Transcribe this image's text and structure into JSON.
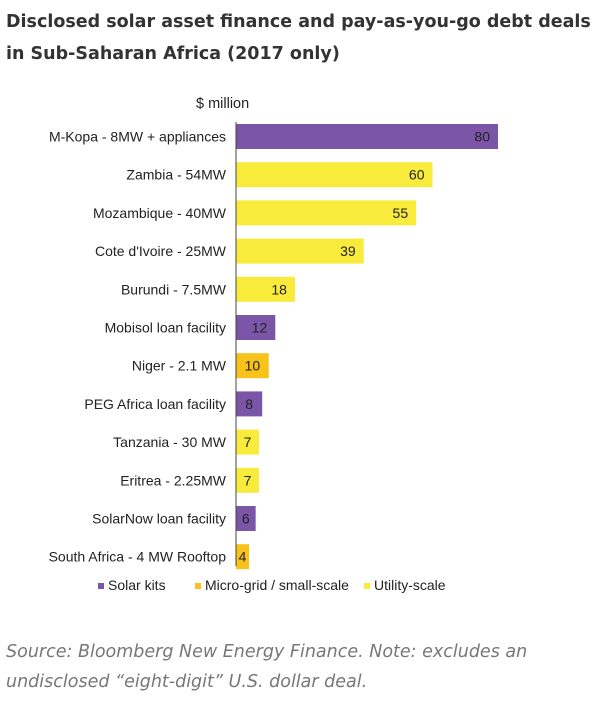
{
  "title": "Disclosed solar asset finance and pay-as-you-go debt deals in Sub-Saharan Africa (2017 only)",
  "caption": "Source: Bloomberg New Energy Finance. Note: excludes an undisclosed “eight-digit” U.S. dollar deal.",
  "colors": {
    "solar_kits": "#7b55a8",
    "micro_grid": "#f7c21a",
    "utility_scale": "#f9eb3c"
  },
  "chart_data": {
    "type": "bar",
    "orientation": "horizontal",
    "unit_label": "$ million",
    "categories": [
      "M-Kopa - 8MW + appliances",
      "Zambia -  54MW",
      "Mozambique - 40MW",
      "Cote d'Ivoire - 25MW",
      "Burundi - 7.5MW",
      "Mobisol loan facility",
      "Niger - 2.1 MW",
      "PEG Africa loan facility",
      "Tanzania - 30 MW",
      "Eritrea - 2.25MW",
      "SolarNow loan facility",
      "South Africa - 4 MW Rooftop"
    ],
    "values": [
      80,
      60,
      55,
      39,
      18,
      12,
      10,
      8,
      7,
      7,
      6,
      4
    ],
    "segments": [
      "solar_kits",
      "utility_scale",
      "utility_scale",
      "utility_scale",
      "utility_scale",
      "solar_kits",
      "micro_grid",
      "solar_kits",
      "utility_scale",
      "utility_scale",
      "solar_kits",
      "micro_grid"
    ],
    "legend": [
      {
        "key": "solar_kits",
        "label": "Solar kits"
      },
      {
        "key": "micro_grid",
        "label": "Micro-grid / small-scale"
      },
      {
        "key": "utility_scale",
        "label": "Utility-scale"
      }
    ],
    "legend_position": "bottom",
    "xlim": [
      0,
      80
    ],
    "grid": false,
    "data_labels": true
  }
}
